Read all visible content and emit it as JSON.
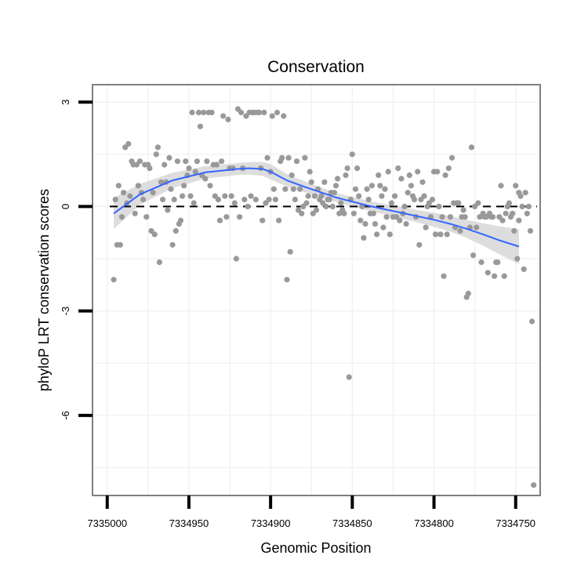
{
  "chart_data": {
    "type": "scatter",
    "title": "Conservation",
    "xlabel": "Genomic Position",
    "ylabel": "phyloP LRT conservation scores",
    "x_reversed": true,
    "xlim": [
      7335009,
      7334735
    ],
    "ylim": [
      -8.3,
      3.5
    ],
    "x_ticks": [
      7335000,
      7334950,
      7334900,
      7334850,
      7334800,
      7334750
    ],
    "x_tick_labels": [
      "7335000",
      "7334950",
      "7334900",
      "7334850",
      "7334800",
      "7334750"
    ],
    "y_ticks": [
      3,
      0,
      -3,
      -6
    ],
    "y_tick_labels": [
      "3",
      "0",
      "-3",
      "-6"
    ],
    "reference_line": {
      "y": 0,
      "style": "dashed"
    },
    "grid": true,
    "colors": {
      "points": "#999999",
      "smooth": "#3366ff",
      "ribbon": "#d9d9d9",
      "frame": "#7f7f7f",
      "grid": "#f2f2f2"
    },
    "points": {
      "x": [
        7334996,
        7334995,
        7334994,
        7334993,
        7334992,
        7334991,
        7334990,
        7334989,
        7334988,
        7334987,
        7334986,
        7334985,
        7334984,
        7334983,
        7334982,
        7334981,
        7334980,
        7334979,
        7334978,
        7334977,
        7334976,
        7334975,
        7334974,
        7334973,
        7334972,
        7334971,
        7334970,
        7334969,
        7334968,
        7334967,
        7334966,
        7334965,
        7334964,
        7334963,
        7334962,
        7334961,
        7334960,
        7334959,
        7334958,
        7334957,
        7334956,
        7334955,
        7334954,
        7334953,
        7334952,
        7334951,
        7334950,
        7334949,
        7334948,
        7334947,
        7334946,
        7334945,
        7334944,
        7334943,
        7334942,
        7334941,
        7334940,
        7334939,
        7334938,
        7334937,
        7334936,
        7334935,
        7334934,
        7334933,
        7334932,
        7334931,
        7334930,
        7334929,
        7334928,
        7334927,
        7334926,
        7334925,
        7334924,
        7334923,
        7334922,
        7334921,
        7334920,
        7334919,
        7334918,
        7334917,
        7334916,
        7334915,
        7334914,
        7334913,
        7334912,
        7334911,
        7334910,
        7334909,
        7334908,
        7334907,
        7334906,
        7334905,
        7334904,
        7334903,
        7334902,
        7334901,
        7334900,
        7334899,
        7334898,
        7334897,
        7334896,
        7334895,
        7334894,
        7334893,
        7334892,
        7334891,
        7334890,
        7334889,
        7334888,
        7334887,
        7334886,
        7334885,
        7334884,
        7334883,
        7334882,
        7334881,
        7334880,
        7334879,
        7334878,
        7334877,
        7334876,
        7334875,
        7334874,
        7334873,
        7334872,
        7334871,
        7334870,
        7334869,
        7334868,
        7334867,
        7334866,
        7334865,
        7334864,
        7334863,
        7334862,
        7334861,
        7334860,
        7334859,
        7334858,
        7334857,
        7334856,
        7334855,
        7334854,
        7334853,
        7334852,
        7334851,
        7334850,
        7334849,
        7334848,
        7334847,
        7334846,
        7334845,
        7334844,
        7334843,
        7334842,
        7334841,
        7334840,
        7334839,
        7334838,
        7334837,
        7334836,
        7334835,
        7334834,
        7334833,
        7334832,
        7334831,
        7334830,
        7334829,
        7334828,
        7334827,
        7334826,
        7334825,
        7334824,
        7334823,
        7334822,
        7334821,
        7334820,
        7334819,
        7334818,
        7334817,
        7334816,
        7334815,
        7334814,
        7334813,
        7334812,
        7334811,
        7334810,
        7334809,
        7334808,
        7334807,
        7334806,
        7334805,
        7334804,
        7334803,
        7334802,
        7334801,
        7334800,
        7334799,
        7334798,
        7334797,
        7334796,
        7334795,
        7334794,
        7334793,
        7334792,
        7334791,
        7334790,
        7334789,
        7334788,
        7334787,
        7334786,
        7334785,
        7334784,
        7334783,
        7334782,
        7334781,
        7334780,
        7334779,
        7334778,
        7334777,
        7334776,
        7334775,
        7334774,
        7334773,
        7334772,
        7334771,
        7334770,
        7334769,
        7334768,
        7334767,
        7334766,
        7334765,
        7334764,
        7334763,
        7334762,
        7334761,
        7334760,
        7334759,
        7334758,
        7334757,
        7334756,
        7334755,
        7334754,
        7334753,
        7334752,
        7334751,
        7334750,
        7334749,
        7334748,
        7334748,
        7334747,
        7334746,
        7334745,
        7334744,
        7334743,
        7334742,
        7334741,
        7334740,
        7334739
      ],
      "y": [
        -2.1,
        0.2,
        -1.1,
        0.6,
        -1.1,
        -0.3,
        0.4,
        1.7,
        0.1,
        1.8,
        0.3,
        1.3,
        1.2,
        -0.2,
        1.2,
        0.6,
        1.3,
        0.4,
        0.2,
        1.2,
        -0.3,
        1.2,
        1.1,
        -0.7,
        0.4,
        -0.8,
        1.5,
        1.7,
        -1.6,
        0.7,
        0.2,
        1.2,
        0.7,
        -0.1,
        1.4,
        0.5,
        -1.1,
        0.2,
        -0.7,
        1.3,
        -0.5,
        -0.4,
        0.3,
        0.6,
        1.3,
        0.9,
        1.1,
        0.3,
        2.7,
        0.1,
        1.0,
        1.3,
        2.7,
        2.3,
        0.9,
        2.7,
        0.8,
        1.3,
        2.7,
        0.6,
        2.7,
        1.2,
        0.3,
        1.2,
        0.2,
        -0.4,
        1.3,
        2.6,
        0.3,
        -0.3,
        2.5,
        1.1,
        0.3,
        1.1,
        0.1,
        -1.5,
        2.8,
        -0.3,
        2.7,
        1.1,
        0.2,
        2.6,
        0.0,
        2.7,
        0.3,
        2.7,
        2.7,
        0.2,
        2.7,
        2.7,
        1.1,
        -0.4,
        2.7,
        0.1,
        1.4,
        0.2,
        1.0,
        2.6,
        0.5,
        0.2,
        2.7,
        -0.4,
        1.3,
        1.4,
        2.6,
        0.5,
        -2.1,
        1.4,
        -1.3,
        0.9,
        0.5,
        0.2,
        1.3,
        -0.1,
        0.5,
        -0.2,
        0.0,
        1.4,
        0.1,
        0.3,
        1.0,
        0.7,
        -0.2,
        0.3,
        -0.1,
        0.5,
        0.2,
        0.3,
        0.1,
        0.7,
        0.0,
        0.2,
        0.2,
        0.4,
        0.0,
        0.4,
        0.6,
        0.8,
        -0.2,
        0.1,
        -0.1,
        -0.2,
        0.9,
        1.1,
        -4.9,
        0.2,
        1.5,
        -0.2,
        0.5,
        1.1,
        0.3,
        -0.4,
        0.0,
        -0.9,
        -0.5,
        0.5,
        0.2,
        -0.2,
        0.6,
        -0.2,
        -0.5,
        -0.8,
        0.9,
        0.6,
        0.3,
        -0.6,
        0.5,
        -0.3,
        1.0,
        -0.8,
        0.1,
        -0.3,
        0.3,
        -0.3,
        1.1,
        -0.4,
        0.8,
        -0.2,
        0.0,
        -0.5,
        0.4,
        0.9,
        0.6,
        0.3,
        0.2,
        -0.3,
        1.0,
        -1.1,
        0.2,
        0.7,
        0.3,
        -0.6,
        0.0,
        0.1,
        -0.3,
        0.2,
        1.0,
        -0.8,
        1.0,
        0.0,
        -0.8,
        -0.3,
        -2.0,
        0.9,
        -0.8,
        1.1,
        -0.3,
        1.4,
        0.1,
        -0.6,
        0.1,
        0.1,
        -0.7,
        -0.3,
        -0.1,
        -0.3,
        -2.6,
        -2.5,
        -0.6,
        1.7,
        -1.4,
        0.0,
        -0.6,
        0.1,
        -0.3,
        -1.6,
        -0.2,
        -0.3,
        -0.3,
        -1.9,
        -0.2,
        -0.3,
        -0.3,
        -2.0,
        -1.6,
        -1.6,
        -0.3,
        0.6,
        -0.4,
        -2.0,
        -0.2,
        0.0,
        0.1,
        -0.3,
        -0.2,
        -0.7,
        0.6,
        -1.5,
        0.4,
        -0.4,
        0.3,
        0.0,
        -1.8,
        0.4,
        -0.2,
        0.0,
        -0.7,
        -3.3,
        -8.0
      ]
    },
    "smooth": {
      "x": [
        7334996,
        7334980,
        7334960,
        7334940,
        7334920,
        7334913,
        7334905,
        7334900,
        7334890,
        7334880,
        7334870,
        7334860,
        7334850,
        7334840,
        7334830,
        7334820,
        7334810,
        7334800,
        7334790,
        7334780,
        7334770,
        7334760,
        7334748
      ],
      "y": [
        -0.2,
        0.35,
        0.75,
        0.98,
        1.08,
        1.1,
        1.08,
        1.0,
        0.75,
        0.58,
        0.42,
        0.26,
        0.14,
        0.02,
        -0.08,
        -0.18,
        -0.28,
        -0.38,
        -0.5,
        -0.64,
        -0.8,
        -0.97,
        -1.15
      ],
      "se": [
        0.45,
        0.3,
        0.22,
        0.18,
        0.17,
        0.18,
        0.2,
        0.22,
        0.18,
        0.16,
        0.14,
        0.13,
        0.14,
        0.14,
        0.15,
        0.16,
        0.18,
        0.2,
        0.22,
        0.26,
        0.32,
        0.4,
        0.5
      ]
    }
  }
}
